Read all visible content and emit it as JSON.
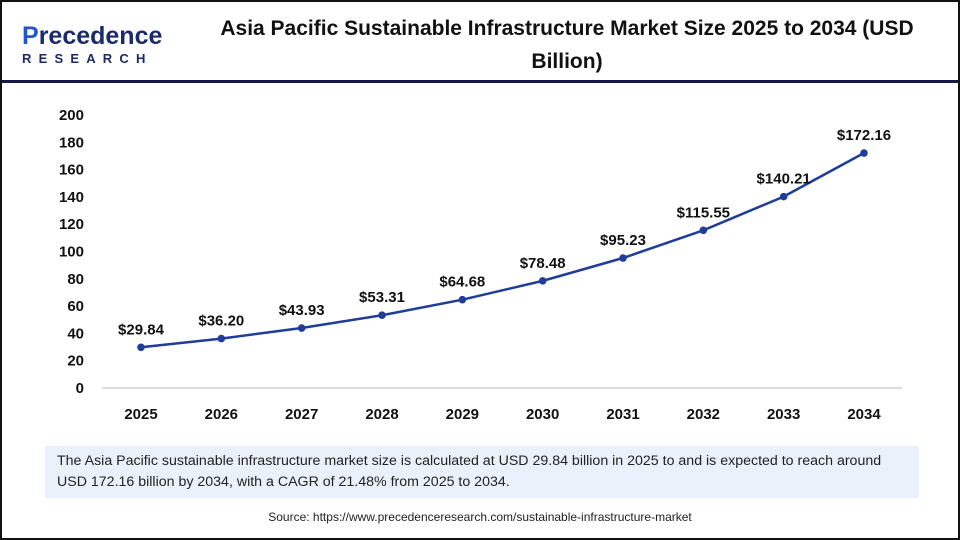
{
  "logo": {
    "line1": "Precedence",
    "line2": "RESEARCH"
  },
  "chart_data": {
    "type": "line",
    "title": "Asia Pacific Sustainable Infrastructure Market Size 2025 to 2034 (USD Billion)",
    "categories": [
      "2025",
      "2026",
      "2027",
      "2028",
      "2029",
      "2030",
      "2031",
      "2032",
      "2033",
      "2034"
    ],
    "values": [
      29.84,
      36.2,
      43.93,
      53.31,
      64.68,
      78.48,
      95.23,
      115.55,
      140.21,
      172.16
    ],
    "data_labels": [
      "$29.84",
      "$36.20",
      "$43.93",
      "$53.31",
      "$64.68",
      "$78.48",
      "$95.23",
      "$115.55",
      "$140.21",
      "$172.16"
    ],
    "yticks": [
      "0",
      "20",
      "40",
      "60",
      "80",
      "100",
      "120",
      "140",
      "160",
      "180",
      "200"
    ],
    "ylim": [
      0,
      200
    ],
    "grid": false,
    "legend": "none",
    "line_color": "#1f3d99"
  },
  "caption": "The Asia Pacific sustainable infrastructure market size is calculated at USD 29.84 billion in 2025 to and is expected to reach around USD 172.16 billion by 2034, with a CAGR of 21.48% from 2025 to 2034.",
  "source": "Source: https://www.precedenceresearch.com/sustainable-infrastructure-market"
}
